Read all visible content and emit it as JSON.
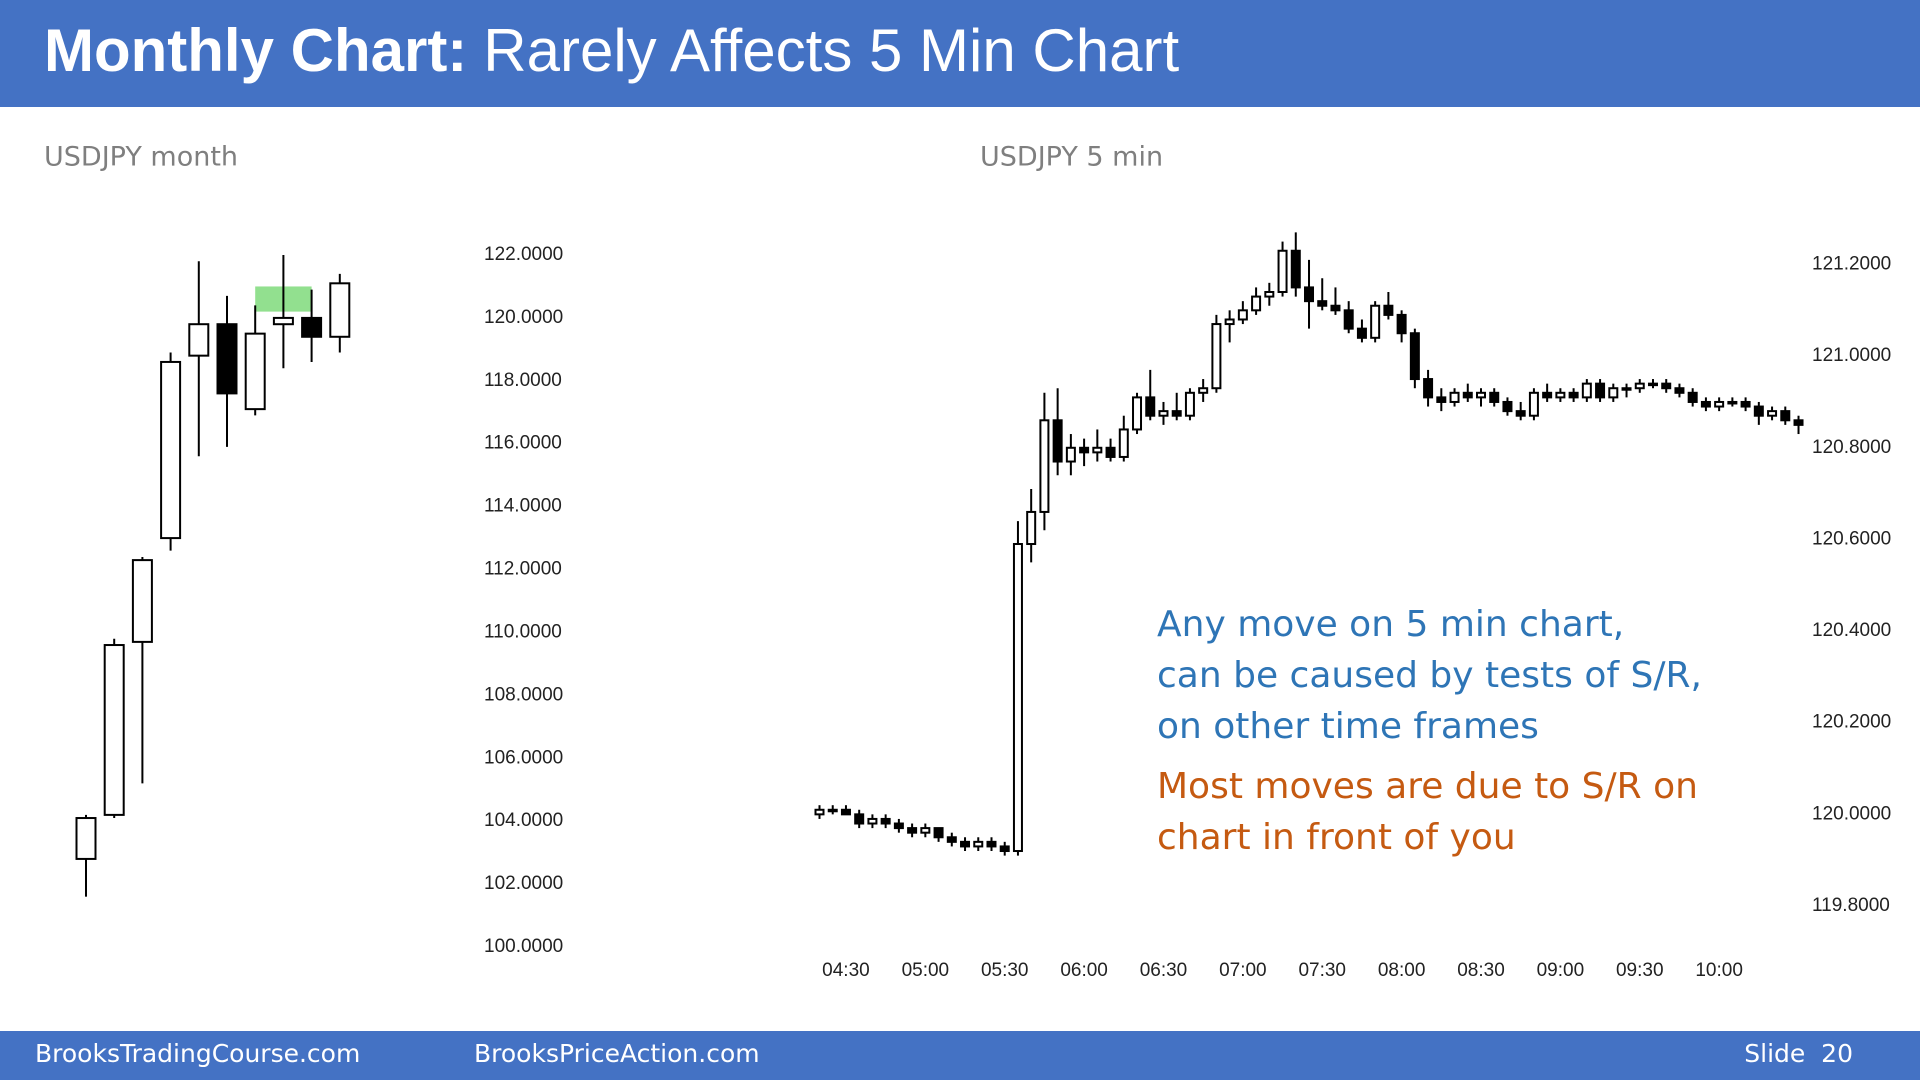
{
  "header": {
    "title_bold": "Monthly Chart:",
    "title": "Rarely Affects 5 Min Chart"
  },
  "footer": {
    "left": "BrooksTradingCourse.com",
    "middle": "BrooksPriceAction.com",
    "slide": "Slide  20"
  },
  "chart_data": [
    {
      "type": "candlestick",
      "title": "USDJPY month",
      "categories": [
        null,
        null,
        null,
        null,
        null,
        null,
        null,
        null,
        null,
        null
      ],
      "open": [
        102.8,
        104.2,
        109.7,
        113.0,
        118.8,
        119.8,
        117.1,
        119.8,
        120.0,
        119.4
      ],
      "high": [
        104.2,
        109.8,
        112.4,
        118.9,
        121.8,
        120.7,
        120.4,
        122.0,
        120.9,
        121.4
      ],
      "low": [
        101.6,
        104.1,
        105.2,
        112.6,
        115.6,
        115.9,
        116.9,
        118.4,
        118.6,
        118.9
      ],
      "close": [
        104.1,
        109.6,
        112.3,
        118.6,
        119.8,
        117.6,
        119.5,
        120.0,
        119.4,
        121.1
      ],
      "up_color": "#ffffff",
      "down_color": "#000000",
      "highlight_range": [
        120.2,
        121.0
      ],
      "highlight_color": "#92e08f",
      "ylim": [
        100,
        122
      ],
      "yticks": [
        {
          "value": 100,
          "label": "100.0000"
        },
        {
          "value": 102,
          "label": "102.0000"
        },
        {
          "value": 104,
          "label": "104.0000"
        },
        {
          "value": 106,
          "label": "106.0000"
        },
        {
          "value": 108,
          "label": "108.0000"
        },
        {
          "value": 110,
          "label": "110.0000"
        },
        {
          "value": 112,
          "label": "112.0000"
        },
        {
          "value": 114,
          "label": "114.0000"
        },
        {
          "value": 116,
          "label": "116.0000"
        },
        {
          "value": 118,
          "label": "118.0000"
        },
        {
          "value": 120,
          "label": "120.0000"
        },
        {
          "value": 122,
          "label": "122.0000"
        }
      ]
    },
    {
      "type": "candlestick",
      "title": "USDJPY 5 min",
      "x": [
        "04:20",
        "04:25",
        "04:30",
        "04:35",
        "04:40",
        "04:45",
        "04:50",
        "04:55",
        "05:00",
        "05:05",
        "05:10",
        "05:15",
        "05:20",
        "05:25",
        "05:30",
        "05:35",
        "05:40",
        "05:45",
        "05:50",
        "05:55",
        "06:00",
        "06:05",
        "06:10",
        "06:15",
        "06:20",
        "06:25",
        "06:30",
        "06:35",
        "06:40",
        "06:45",
        "06:50",
        "06:55",
        "07:00",
        "07:05",
        "07:10",
        "07:15",
        "07:20",
        "07:25",
        "07:30",
        "07:35",
        "07:40",
        "07:45",
        "07:50",
        "07:55",
        "08:00",
        "08:05",
        "08:10",
        "08:15",
        "08:20",
        "08:25",
        "08:30",
        "08:35",
        "08:40",
        "08:45",
        "08:50",
        "08:55",
        "09:00",
        "09:05",
        "09:10",
        "09:15",
        "09:20",
        "09:25",
        "09:30",
        "09:35",
        "09:40",
        "09:45",
        "09:50",
        "09:55",
        "10:00",
        "10:05",
        "10:10",
        "10:15",
        "10:20",
        "10:25",
        "10:30"
      ],
      "open": [
        120.0,
        120.01,
        120.01,
        120.0,
        119.98,
        119.99,
        119.98,
        119.97,
        119.96,
        119.97,
        119.95,
        119.94,
        119.93,
        119.94,
        119.93,
        119.92,
        120.59,
        120.66,
        120.86,
        120.77,
        120.8,
        120.79,
        120.8,
        120.78,
        120.84,
        120.91,
        120.87,
        120.88,
        120.87,
        120.92,
        120.93,
        121.07,
        121.08,
        121.1,
        121.13,
        121.14,
        121.23,
        121.15,
        121.12,
        121.11,
        121.1,
        121.06,
        121.04,
        121.11,
        121.09,
        121.05,
        120.95,
        120.91,
        120.9,
        120.92,
        120.91,
        120.92,
        120.9,
        120.88,
        120.87,
        120.92,
        120.91,
        120.92,
        120.91,
        120.94,
        120.91,
        120.93,
        120.93,
        120.94,
        120.94,
        120.93,
        120.92,
        120.9,
        120.89,
        120.9,
        120.9,
        120.89,
        120.87,
        120.88,
        120.86
      ],
      "high": [
        120.02,
        120.02,
        120.02,
        120.01,
        120.0,
        120.0,
        119.99,
        119.98,
        119.98,
        119.97,
        119.96,
        119.95,
        119.95,
        119.95,
        119.94,
        120.64,
        120.71,
        120.92,
        120.93,
        120.83,
        120.82,
        120.84,
        120.82,
        120.87,
        120.92,
        120.97,
        120.9,
        120.92,
        120.93,
        120.95,
        121.09,
        121.1,
        121.12,
        121.15,
        121.16,
        121.25,
        121.27,
        121.21,
        121.17,
        121.15,
        121.12,
        121.08,
        121.12,
        121.14,
        121.1,
        121.06,
        120.97,
        120.93,
        120.93,
        120.94,
        120.93,
        120.93,
        120.91,
        120.9,
        120.93,
        120.94,
        120.93,
        120.93,
        120.95,
        120.95,
        120.94,
        120.94,
        120.95,
        120.95,
        120.95,
        120.94,
        120.93,
        120.91,
        120.91,
        120.91,
        120.91,
        120.9,
        120.89,
        120.89,
        120.87
      ],
      "low": [
        119.99,
        120.0,
        120.0,
        119.97,
        119.97,
        119.97,
        119.96,
        119.95,
        119.95,
        119.94,
        119.93,
        119.92,
        119.92,
        119.92,
        119.91,
        119.91,
        120.55,
        120.62,
        120.74,
        120.74,
        120.76,
        120.77,
        120.77,
        120.77,
        120.83,
        120.86,
        120.85,
        120.86,
        120.86,
        120.9,
        120.92,
        121.03,
        121.07,
        121.09,
        121.11,
        121.13,
        121.13,
        121.06,
        121.1,
        121.09,
        121.05,
        121.03,
        121.03,
        121.08,
        121.03,
        120.93,
        120.89,
        120.88,
        120.89,
        120.9,
        120.89,
        120.89,
        120.87,
        120.86,
        120.86,
        120.9,
        120.9,
        120.9,
        120.9,
        120.9,
        120.9,
        120.91,
        120.92,
        120.93,
        120.92,
        120.91,
        120.89,
        120.88,
        120.88,
        120.89,
        120.88,
        120.85,
        120.86,
        120.85,
        120.83
      ],
      "close": [
        120.01,
        120.01,
        120.0,
        119.98,
        119.99,
        119.98,
        119.97,
        119.96,
        119.97,
        119.95,
        119.94,
        119.93,
        119.94,
        119.93,
        119.92,
        120.59,
        120.66,
        120.86,
        120.77,
        120.8,
        120.79,
        120.8,
        120.78,
        120.84,
        120.91,
        120.87,
        120.88,
        120.87,
        120.92,
        120.93,
        121.07,
        121.08,
        121.1,
        121.13,
        121.14,
        121.23,
        121.15,
        121.12,
        121.11,
        121.1,
        121.06,
        121.04,
        121.11,
        121.09,
        121.05,
        120.95,
        120.91,
        120.9,
        120.92,
        120.91,
        120.92,
        120.9,
        120.88,
        120.87,
        120.92,
        120.91,
        120.92,
        120.91,
        120.94,
        120.91,
        120.93,
        120.93,
        120.94,
        120.94,
        120.93,
        120.92,
        120.9,
        120.89,
        120.9,
        120.9,
        120.89,
        120.87,
        120.88,
        120.86,
        120.85
      ],
      "up_color": "#ffffff",
      "down_color": "#000000",
      "xticks": [
        "04:30",
        "05:00",
        "05:30",
        "06:00",
        "06:30",
        "07:00",
        "07:30",
        "08:00",
        "08:30",
        "09:00",
        "09:30",
        "10:00"
      ],
      "ylim": [
        119.8,
        121.2
      ],
      "yticks": [
        {
          "value": 119.8,
          "label": "119.8000"
        },
        {
          "value": 120.0,
          "label": "120.0000"
        },
        {
          "value": 120.2,
          "label": "120.2000"
        },
        {
          "value": 120.4,
          "label": "120.4000"
        },
        {
          "value": 120.6,
          "label": "120.6000"
        },
        {
          "value": 120.8,
          "label": "120.8000"
        },
        {
          "value": 121.0,
          "label": "121.0000"
        },
        {
          "value": 121.2,
          "label": "121.2000"
        }
      ],
      "annotations": [
        {
          "color": "#2e75b6",
          "lines": [
            "Any move on 5 min chart,",
            "can be caused by tests of S/R,",
            "on other time frames"
          ]
        },
        {
          "color": "#c55a11",
          "lines": [
            "Most moves are due to S/R on",
            "chart in front of you"
          ]
        }
      ]
    }
  ]
}
